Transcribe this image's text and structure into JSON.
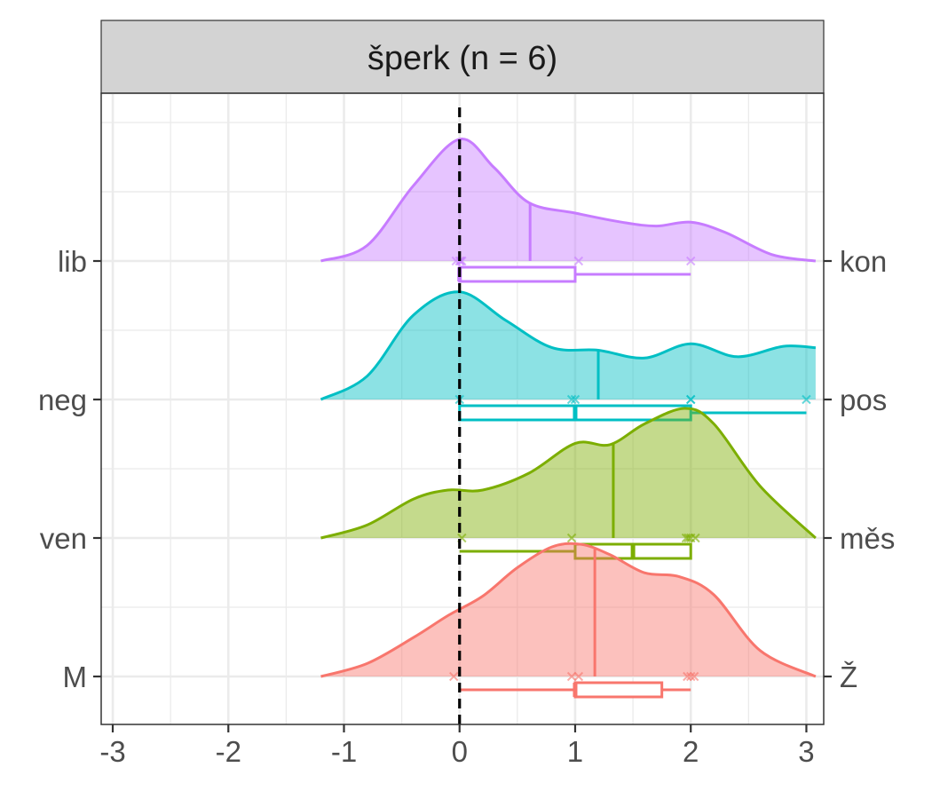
{
  "chart_data": {
    "type": "ridgeline-density-boxplot",
    "facet_title": "šperk (n = 6)",
    "xlim": [
      -3.1,
      3.15
    ],
    "x_ticks": [
      -3,
      -2,
      -1,
      0,
      1,
      2,
      3
    ],
    "x_tick_labels": [
      "-3",
      "-2",
      "-1",
      "0",
      "1",
      "2",
      "3"
    ],
    "reference_line": {
      "x": 0,
      "style": "dashed"
    },
    "grid": true,
    "series": [
      {
        "left_label": "M",
        "right_label": "Ž",
        "color": "#F8766D",
        "points": [
          -0.05,
          0.97,
          1.03,
          1.97,
          2.03,
          2.0
        ],
        "mean": 1.17,
        "box": {
          "min": 0,
          "q1": 1,
          "median": 1,
          "q3": 1.75,
          "max": 2
        },
        "density": {
          "x": [
            -1.2,
            -0.8,
            -0.4,
            -0.1,
            0.2,
            0.5,
            0.8,
            1.05,
            1.3,
            1.6,
            1.9,
            2.2,
            2.6,
            3.08
          ],
          "y": [
            0.0,
            0.1,
            0.3,
            0.47,
            0.62,
            0.84,
            1.0,
            1.02,
            0.94,
            0.8,
            0.77,
            0.63,
            0.2,
            0.0
          ]
        }
      },
      {
        "left_label": "ven",
        "right_label": "měs",
        "color": "#7CAE00",
        "points": [
          0.02,
          0.97,
          1.96,
          2.0,
          2.04,
          1.98
        ],
        "mean": 1.33,
        "box": {
          "min": 0,
          "q1": 1,
          "median": 1.5,
          "q3": 2,
          "max": 2
        },
        "density": {
          "x": [
            -1.2,
            -0.8,
            -0.4,
            -0.1,
            0.2,
            0.6,
            1.0,
            1.3,
            1.6,
            1.95,
            2.2,
            2.6,
            3.08
          ],
          "y": [
            0.0,
            0.1,
            0.3,
            0.37,
            0.37,
            0.5,
            0.73,
            0.72,
            0.88,
            1.0,
            0.88,
            0.4,
            0.0
          ]
        }
      },
      {
        "left_label": "neg",
        "right_label": "pos",
        "color": "#00BFC4",
        "points": [
          0.0,
          0.97,
          1.0,
          2.0,
          3.0,
          2.0
        ],
        "mean": 1.2,
        "box": {
          "min": 0,
          "q1": 0,
          "median": 1,
          "q3": 2,
          "max": 3
        },
        "density": {
          "x": [
            -1.2,
            -0.8,
            -0.4,
            0.0,
            0.4,
            0.8,
            1.2,
            1.6,
            2.0,
            2.4,
            2.8,
            3.08
          ],
          "y": [
            0.0,
            0.18,
            0.65,
            0.83,
            0.61,
            0.4,
            0.38,
            0.32,
            0.43,
            0.33,
            0.41,
            0.4
          ]
        }
      },
      {
        "left_label": "lib",
        "right_label": "kon",
        "color": "#C77CFF",
        "points": [
          -0.03,
          0.02,
          1.03,
          2.0,
          0.0,
          0.01
        ],
        "mean": 0.61,
        "box": {
          "min": 0,
          "q1": 0,
          "median": 0,
          "q3": 1,
          "max": 2
        },
        "density": {
          "x": [
            -1.2,
            -0.8,
            -0.4,
            0.0,
            0.3,
            0.6,
            1.0,
            1.4,
            1.7,
            2.0,
            2.3,
            2.7,
            3.08
          ],
          "y": [
            0.0,
            0.12,
            0.58,
            0.94,
            0.72,
            0.45,
            0.37,
            0.3,
            0.27,
            0.3,
            0.22,
            0.05,
            0.0
          ]
        }
      }
    ]
  }
}
